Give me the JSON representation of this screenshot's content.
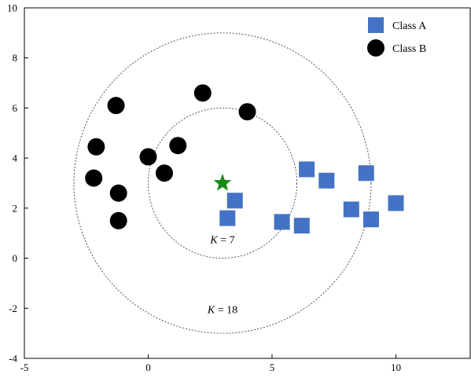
{
  "chart_data": {
    "type": "scatter",
    "title": "",
    "xlabel": "",
    "ylabel": "",
    "xlim": [
      -5,
      13
    ],
    "ylim": [
      -4,
      10
    ],
    "xticks": [
      -5,
      0,
      5,
      10
    ],
    "xtick_labels": [
      "-5",
      "0",
      "5",
      "10"
    ],
    "yticks": [
      -4,
      -2,
      0,
      2,
      4,
      6,
      8,
      10
    ],
    "ytick_labels": [
      "-4",
      "-2",
      "0",
      "2",
      "4",
      "6",
      "8",
      "10"
    ],
    "grid": false,
    "legend_position": "top-right",
    "series": [
      {
        "name": "Class A",
        "marker": "square",
        "color": "#4472C4",
        "points": [
          [
            3.5,
            2.3
          ],
          [
            3.2,
            1.6
          ],
          [
            5.4,
            1.45
          ],
          [
            6.2,
            1.3
          ],
          [
            6.4,
            3.55
          ],
          [
            7.2,
            3.1
          ],
          [
            8.2,
            1.95
          ],
          [
            8.8,
            3.4
          ],
          [
            9.0,
            1.55
          ],
          [
            10.0,
            2.2
          ]
        ]
      },
      {
        "name": "Class B",
        "marker": "circle",
        "color": "#000000",
        "points": [
          [
            -1.3,
            6.1
          ],
          [
            -2.1,
            4.45
          ],
          [
            -2.2,
            3.2
          ],
          [
            -1.2,
            2.6
          ],
          [
            -1.2,
            1.5
          ],
          [
            0.0,
            4.05
          ],
          [
            0.65,
            3.4
          ],
          [
            1.2,
            4.5
          ],
          [
            2.2,
            6.6
          ],
          [
            4.0,
            5.85
          ]
        ]
      }
    ],
    "query_point": {
      "x": 3.0,
      "y": 3.0,
      "marker": "star",
      "color": "#1A8A1A"
    },
    "circles": [
      {
        "cx": 3.0,
        "cy": 3.0,
        "r": 3.0,
        "label_k": "K",
        "label_rest": " = 7",
        "label_x": 3.0,
        "label_y": 0.6
      },
      {
        "cx": 3.0,
        "cy": 3.0,
        "r": 6.0,
        "label_k": "K",
        "label_rest": " = 18",
        "label_x": 3.0,
        "label_y": -2.2
      }
    ]
  }
}
